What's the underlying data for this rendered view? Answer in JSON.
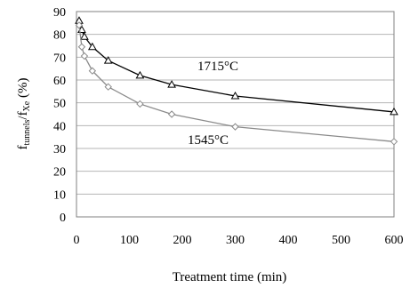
{
  "chart_data": {
    "type": "line",
    "xlabel": "Treatment time (min)",
    "ylabel_main": "f",
    "ylabel_sub1": "tunnels",
    "ylabel_mid": "/f",
    "ylabel_sub2": "Xe",
    "ylabel_unit": " (%)",
    "xlim": [
      0,
      600
    ],
    "ylim": [
      0,
      90
    ],
    "xticks": [
      0,
      100,
      200,
      300,
      400,
      500,
      600
    ],
    "yticks": [
      0,
      10,
      20,
      30,
      40,
      50,
      60,
      70,
      80,
      90
    ],
    "grid": "horizontal",
    "series": [
      {
        "name": "1715°C",
        "marker": "triangle",
        "color": "#000000",
        "points": [
          [
            5,
            86
          ],
          [
            10,
            82
          ],
          [
            15,
            79
          ],
          [
            30,
            74.5
          ],
          [
            60,
            68.5
          ],
          [
            120,
            62
          ],
          [
            180,
            58
          ],
          [
            300,
            53
          ],
          [
            600,
            46
          ]
        ]
      },
      {
        "name": "1545°C",
        "marker": "diamond",
        "color": "#8a8a8a",
        "points": [
          [
            5,
            84
          ],
          [
            10,
            74.5
          ],
          [
            15,
            70.5
          ],
          [
            30,
            64
          ],
          [
            60,
            57
          ],
          [
            120,
            49.5
          ],
          [
            180,
            45
          ],
          [
            300,
            39.5
          ],
          [
            600,
            33
          ]
        ]
      }
    ]
  }
}
